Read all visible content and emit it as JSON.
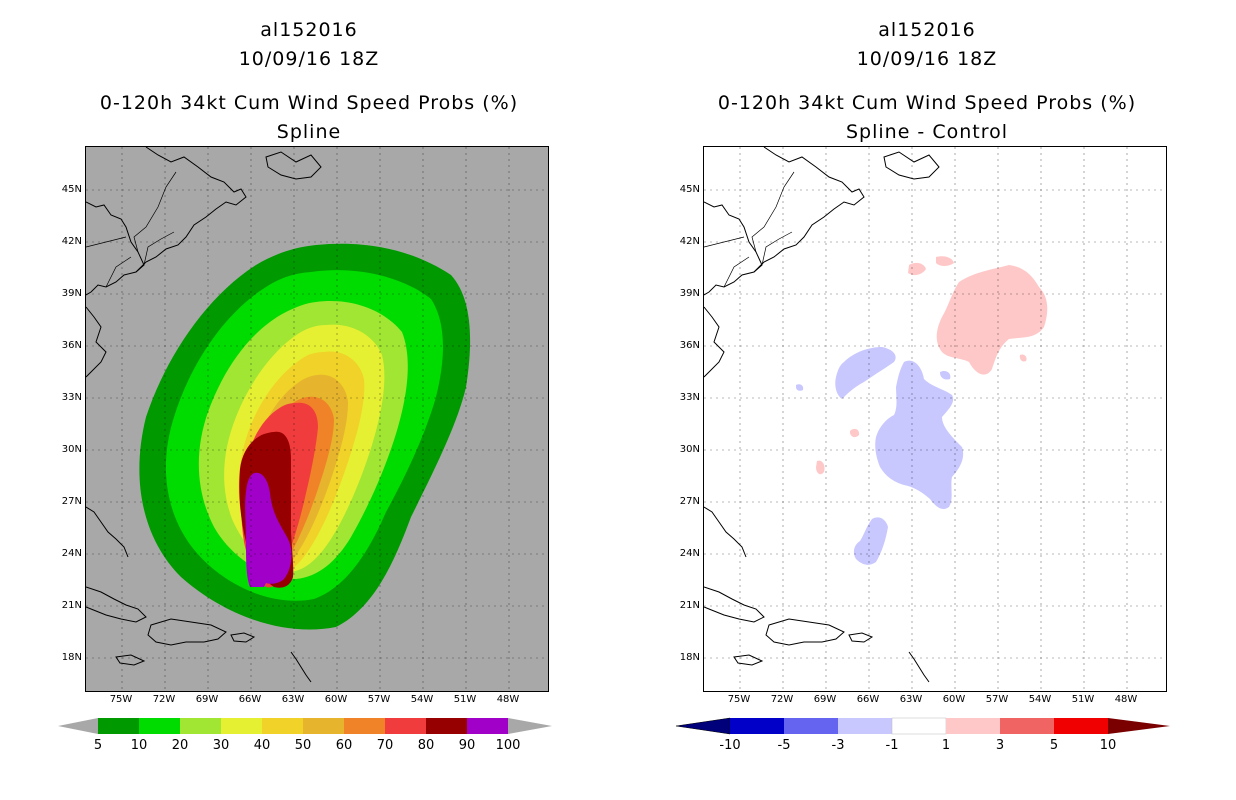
{
  "left_panel": {
    "title_id": "al152016",
    "title_time": "10/09/16 18Z",
    "title_product": "0-120h 34kt Cum Wind Speed Probs (%)",
    "title_method": "Spline",
    "colorbar": {
      "labels": [
        "5",
        "10",
        "20",
        "30",
        "40",
        "50",
        "60",
        "70",
        "80",
        "90",
        "100"
      ],
      "colors": [
        "#009a00",
        "#00dc00",
        "#a0e632",
        "#e6f032",
        "#f0d228",
        "#e6b42d",
        "#f08228",
        "#f03c3c",
        "#960000",
        "#a000c8"
      ],
      "under_color": "#a8a8a8",
      "over_color": "#a8a8a8"
    }
  },
  "right_panel": {
    "title_id": "al152016",
    "title_time": "10/09/16 18Z",
    "title_product": "0-120h 34kt Cum Wind Speed Probs (%)",
    "title_method": "Spline - Control",
    "colorbar": {
      "labels": [
        "-10",
        "-5",
        "-3",
        "-1",
        "1",
        "3",
        "5",
        "10"
      ],
      "colors": [
        "#0000c8",
        "#6464f0",
        "#c8c8ff",
        "#ffffff",
        "#ffc8c8",
        "#f06464",
        "#f00000"
      ],
      "under_color": "#00007a",
      "over_color": "#7a0000"
    }
  },
  "axes": {
    "lat_labels": [
      "45N",
      "42N",
      "39N",
      "36N",
      "33N",
      "30N",
      "27N",
      "24N",
      "21N",
      "18N"
    ],
    "lon_labels": [
      "75W",
      "72W",
      "69W",
      "66W",
      "63W",
      "60W",
      "57W",
      "54W",
      "51W",
      "48W"
    ]
  }
}
